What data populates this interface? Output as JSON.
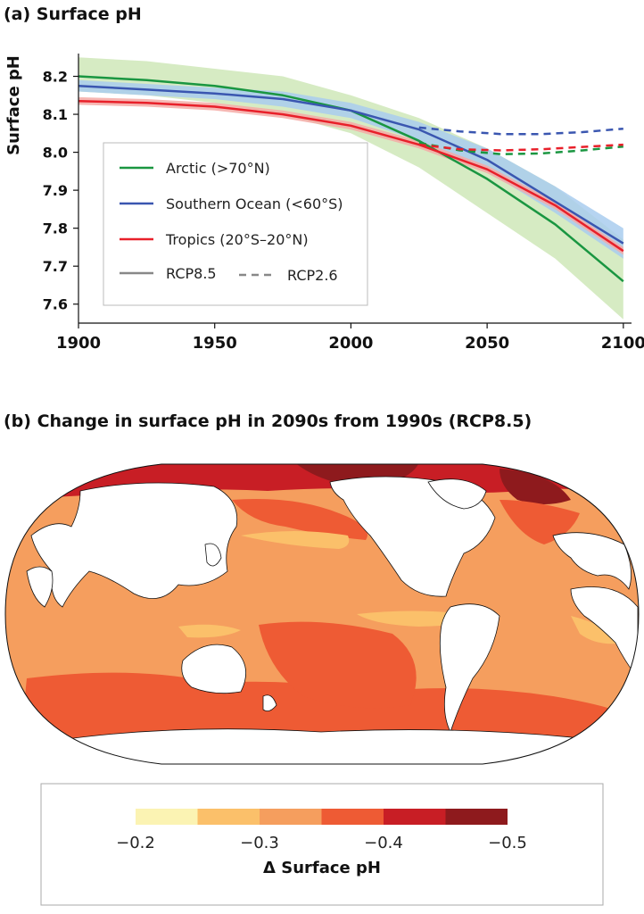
{
  "chart_data": [
    {
      "type": "line",
      "title": "(a) Surface pH",
      "xlabel": "",
      "ylabel": "Surface pH",
      "xlim": [
        1900,
        2103
      ],
      "ylim": [
        7.55,
        8.26
      ],
      "x_ticks": [
        "1900",
        "1950",
        "2000",
        "2050",
        "2100"
      ],
      "y_ticks": [
        "8.2",
        "8.1",
        "8.0",
        "7.9",
        "7.8",
        "7.7",
        "7.6"
      ],
      "grid": false,
      "legend_position": "lower-left",
      "legend": {
        "entries": [
          "Arctic (>70°N)",
          "Southern Ocean (<60°S)",
          "Tropics (20°S–20°N)"
        ],
        "style_entries": [
          "RCP8.5",
          "RCP2.6"
        ]
      },
      "series": [
        {
          "name": "Arctic (>70°N)",
          "scenario": "RCP8.5",
          "color": "#1a9641",
          "band_color": "#cfe8b8",
          "x": [
            1900,
            1925,
            1950,
            1975,
            2000,
            2025,
            2050,
            2075,
            2100
          ],
          "values": [
            8.2,
            8.19,
            8.175,
            8.15,
            8.11,
            8.03,
            7.93,
            7.81,
            7.66
          ],
          "lower": [
            8.16,
            8.15,
            8.13,
            8.1,
            8.05,
            7.96,
            7.84,
            7.72,
            7.56
          ],
          "upper": [
            8.25,
            8.24,
            8.22,
            8.2,
            8.15,
            8.09,
            8.01,
            7.91,
            7.77
          ]
        },
        {
          "name": "Southern Ocean (<60°S)",
          "scenario": "RCP8.5",
          "color": "#3a56b0",
          "band_color": "#a9cdee",
          "x": [
            1900,
            1925,
            1950,
            1975,
            2000,
            2025,
            2050,
            2075,
            2100
          ],
          "values": [
            8.175,
            8.165,
            8.155,
            8.14,
            8.11,
            8.06,
            7.98,
            7.87,
            7.76
          ],
          "lower": [
            8.16,
            8.15,
            8.14,
            8.12,
            8.09,
            8.03,
            7.95,
            7.84,
            7.72
          ],
          "upper": [
            8.19,
            8.18,
            8.17,
            8.16,
            8.13,
            8.08,
            8.01,
            7.91,
            7.8
          ]
        },
        {
          "name": "Tropics (20°S–20°N)",
          "scenario": "RCP8.5",
          "color": "#e8202a",
          "band_color": "#f4aaa6",
          "x": [
            1900,
            1925,
            1950,
            1975,
            2000,
            2025,
            2050,
            2075,
            2100
          ],
          "values": [
            8.135,
            8.13,
            8.12,
            8.1,
            8.07,
            8.02,
            7.955,
            7.86,
            7.74
          ],
          "lower": [
            8.125,
            8.12,
            8.11,
            8.09,
            8.06,
            8.01,
            7.945,
            7.85,
            7.73
          ],
          "upper": [
            8.145,
            8.14,
            8.13,
            8.11,
            8.08,
            8.03,
            7.965,
            7.87,
            7.75
          ]
        },
        {
          "name": "Arctic (>70°N)",
          "scenario": "RCP2.6",
          "color": "#1a9641",
          "dashed": true,
          "x": [
            2025,
            2040,
            2055,
            2070,
            2085,
            2100
          ],
          "values": [
            8.025,
            8.005,
            7.995,
            7.997,
            8.005,
            8.015
          ]
        },
        {
          "name": "Southern Ocean (<60°S)",
          "scenario": "RCP2.6",
          "color": "#3a56b0",
          "dashed": true,
          "x": [
            2025,
            2040,
            2055,
            2070,
            2085,
            2100
          ],
          "values": [
            8.065,
            8.055,
            8.048,
            8.048,
            8.053,
            8.062
          ]
        },
        {
          "name": "Tropics (20°S–20°N)",
          "scenario": "RCP2.6",
          "color": "#e8202a",
          "dashed": true,
          "x": [
            2025,
            2040,
            2055,
            2070,
            2085,
            2100
          ],
          "values": [
            8.02,
            8.008,
            8.005,
            8.008,
            8.014,
            8.02
          ]
        }
      ]
    },
    {
      "type": "heatmap",
      "title": "(b) Change in surface pH in 2090s from 1990s (RCP8.5)",
      "projection": "Robinson world map",
      "colorbar": {
        "label": "Δ Surface pH",
        "tick_labels": [
          "−0.2",
          "−0.3",
          "−0.4",
          "−0.5"
        ],
        "bins": [
          {
            "from": -0.2,
            "to": -0.25,
            "color": "#fbf3b3"
          },
          {
            "from": -0.25,
            "to": -0.3,
            "color": "#fbc06a"
          },
          {
            "from": -0.3,
            "to": -0.35,
            "color": "#f59e5e"
          },
          {
            "from": -0.35,
            "to": -0.4,
            "color": "#ee5b34"
          },
          {
            "from": -0.4,
            "to": -0.45,
            "color": "#c81e25"
          },
          {
            "from": -0.45,
            "to": -0.5,
            "color": "#8e1a1d"
          }
        ]
      }
    }
  ]
}
